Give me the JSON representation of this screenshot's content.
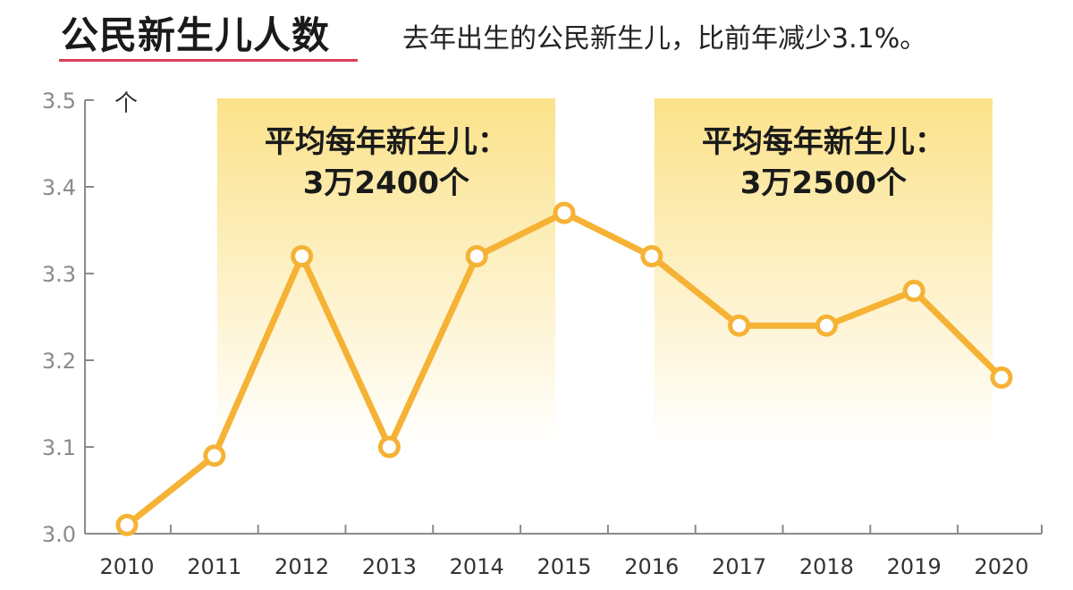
{
  "header": {
    "title": "公民新生儿人数",
    "subtitle": "去年出生的公民新生儿，比前年减少3.1%。"
  },
  "colors": {
    "line": "#f5b235",
    "band_top": "#fbe28a",
    "band_bottom": "#ffffff",
    "axis": "#8a8a8a",
    "accent_underline": "#d9405a"
  },
  "chart_data": {
    "type": "line",
    "title": "公民新生儿人数",
    "subtitle": "去年出生的公民新生儿，比前年减少3.1%。",
    "unit": "个",
    "categories": [
      "2010",
      "2011",
      "2012",
      "2013",
      "2014",
      "2015",
      "2016",
      "2017",
      "2018",
      "2019",
      "2020"
    ],
    "values": [
      3.01,
      3.09,
      3.32,
      3.1,
      3.32,
      3.37,
      3.32,
      3.24,
      3.24,
      3.28,
      3.18
    ],
    "ylim": [
      3.0,
      3.5
    ],
    "yticks": [
      "3.0",
      "3.1",
      "3.2",
      "3.3",
      "3.4",
      "3.5"
    ],
    "grid": false,
    "bands": [
      {
        "from": "2011",
        "to": "2015",
        "line1": "平均每年新生儿：",
        "line2": "3万2400个"
      },
      {
        "from": "2016",
        "to": "2020",
        "line1": "平均每年新生儿：",
        "line2": "3万2500个"
      }
    ]
  }
}
